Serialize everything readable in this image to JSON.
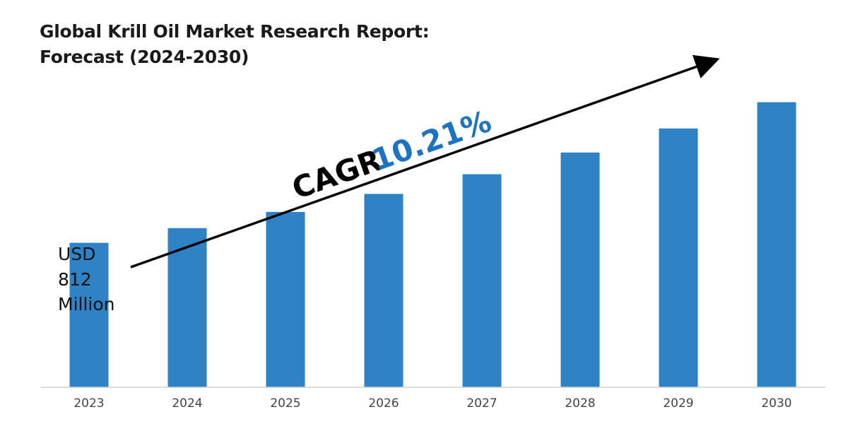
{
  "title_lines": [
    "Global Krill Oil Market Research Report:",
    "Forecast (2024-2030)"
  ],
  "annotations": {
    "start_value_lines": [
      "USD",
      "812",
      "Million"
    ],
    "cagr_label": "CAGR",
    "cagr_value": "10.21%"
  },
  "colors": {
    "bar": "#2e83c6",
    "cagr_value": "#1d73c1",
    "axis": "#d0d0d0",
    "arrow": "#000000"
  },
  "chart_data": {
    "type": "bar",
    "title": "Global Krill Oil Market Research Report: Forecast (2024-2030)",
    "categories": [
      "2023",
      "2024",
      "2025",
      "2026",
      "2027",
      "2028",
      "2029",
      "2030"
    ],
    "values": [
      812,
      895,
      986,
      1087,
      1198,
      1320,
      1455,
      1603
    ],
    "unit": "USD Million",
    "ylim": [
      0,
      1800
    ],
    "grid": false,
    "legend": "none",
    "y_axis_shown": false,
    "annotations": [
      "USD 812 Million",
      "CAGR 10.21%"
    ]
  }
}
